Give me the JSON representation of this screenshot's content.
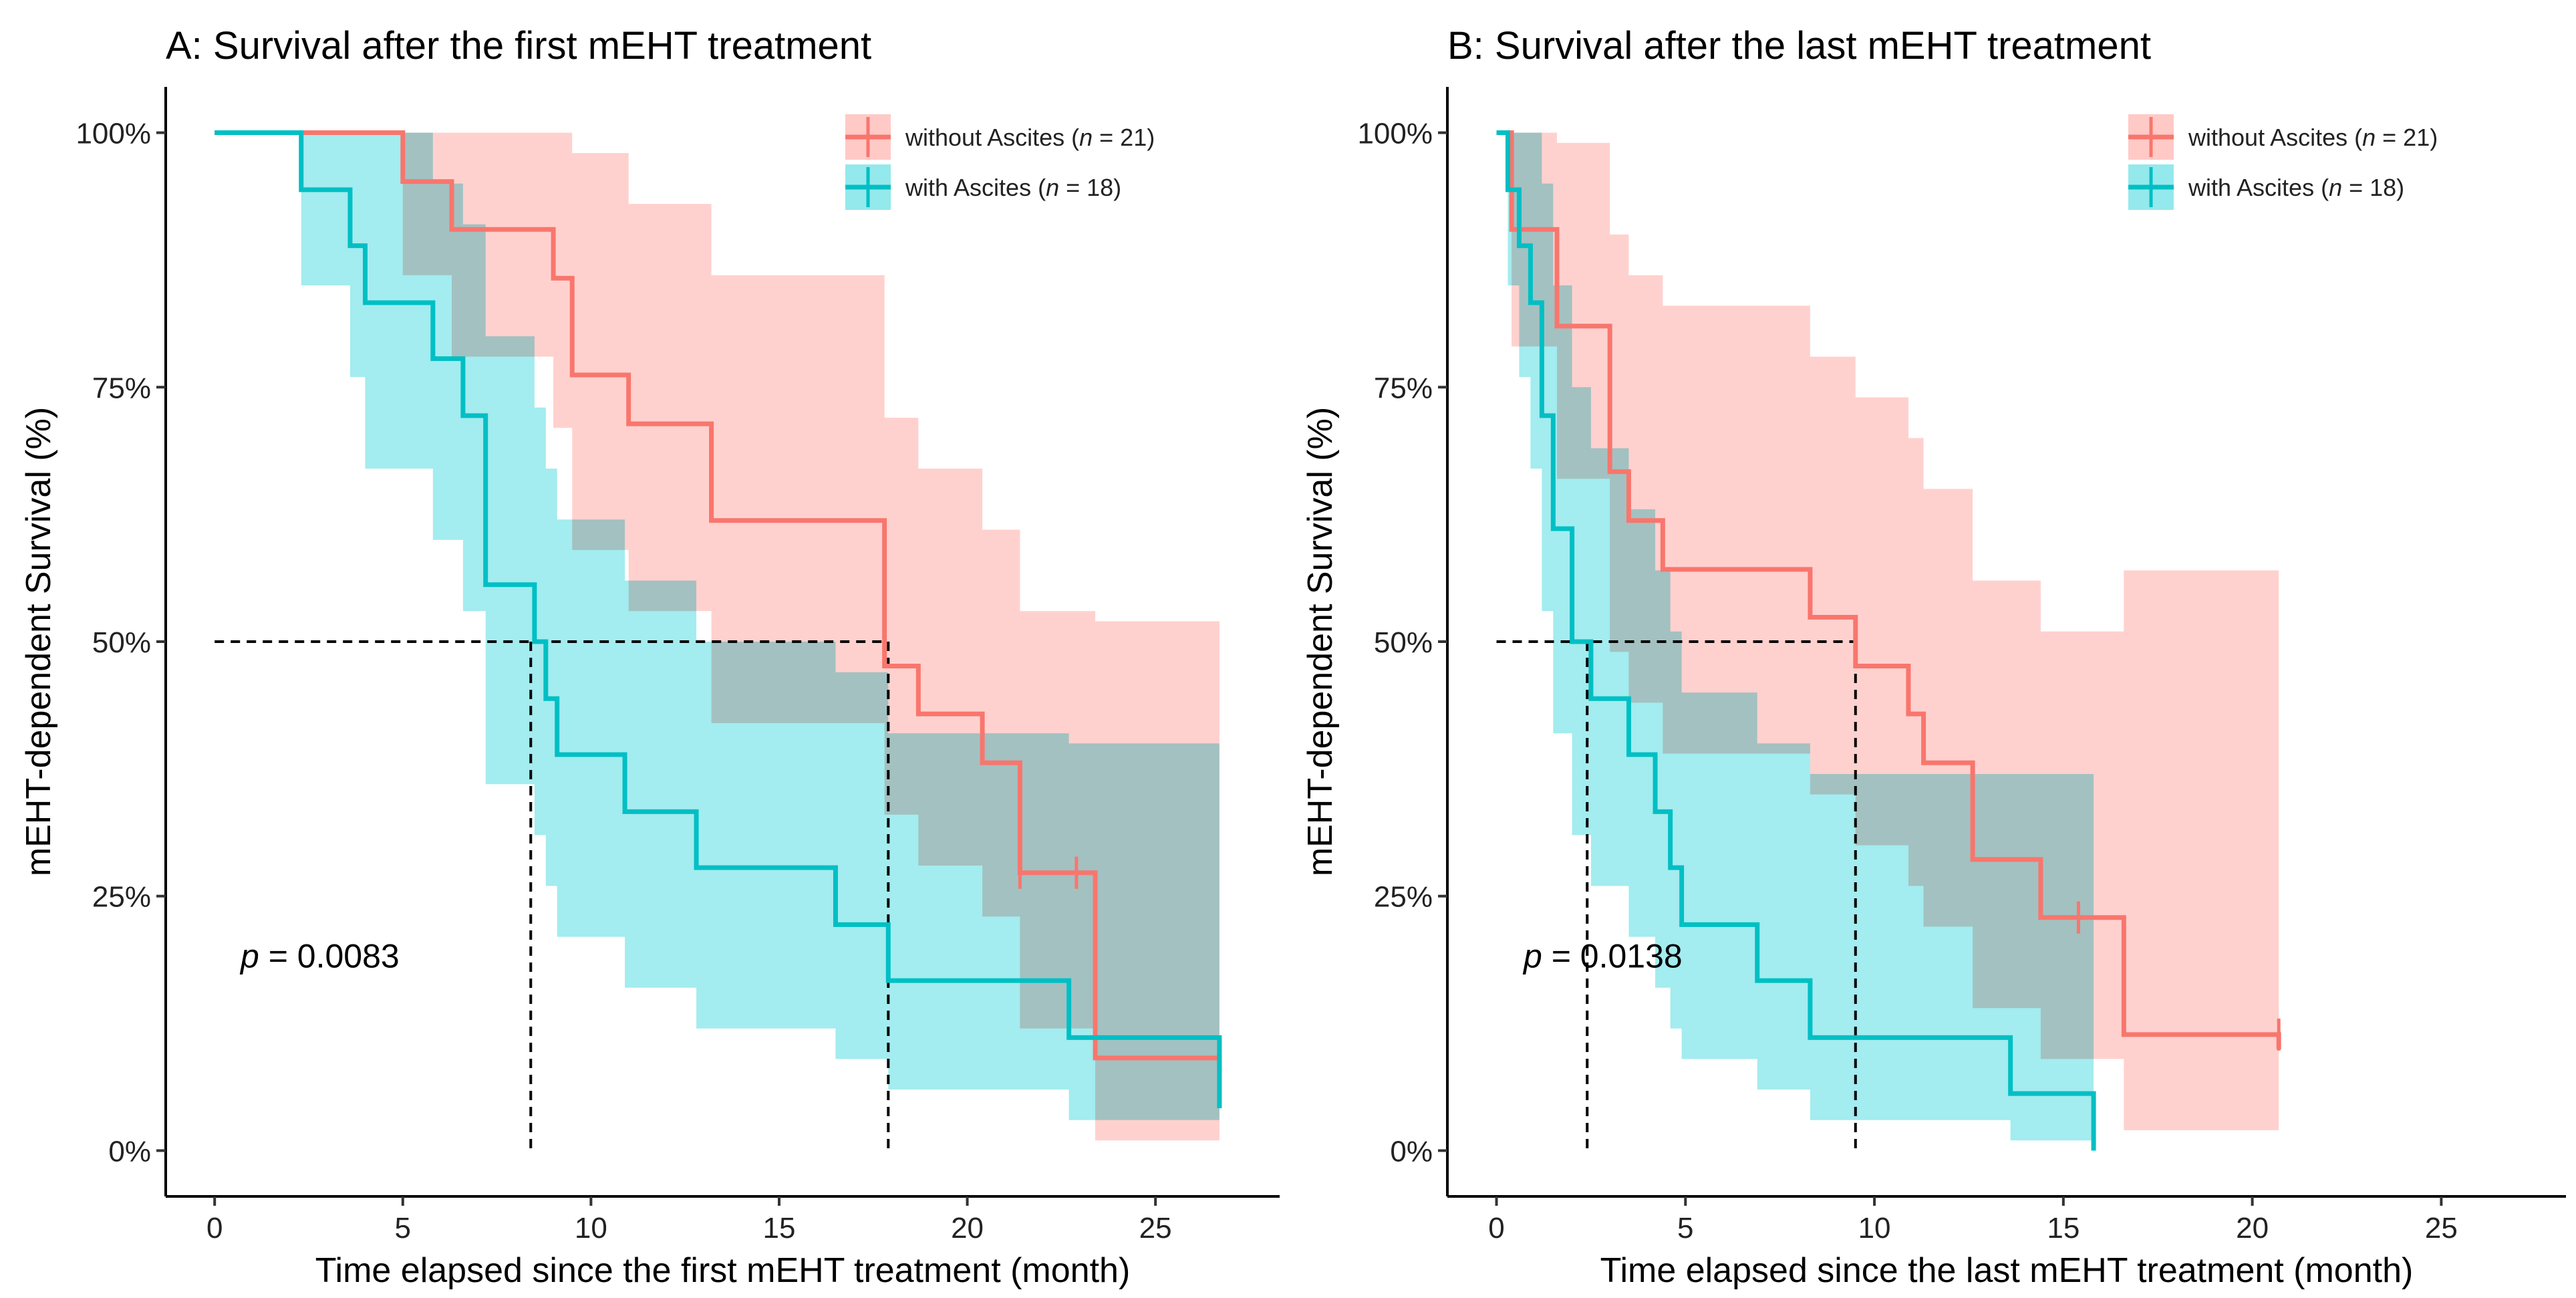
{
  "chart_data": [
    {
      "type": "line",
      "subtype": "kaplan-meier",
      "title": "A: Survival after the first mEHT treatment",
      "xlabel": "Time elapsed since the first mEHT treatment (month)",
      "ylabel": "mEHT-dependent Survival (%)",
      "xlim": [
        -1.3,
        28.3
      ],
      "ylim": [
        -0.045,
        1.045
      ],
      "xticks": [
        0,
        5,
        10,
        15,
        20,
        25
      ],
      "xtick_labels": [
        "0",
        "5",
        "10",
        "15",
        "20",
        "25"
      ],
      "yticks": [
        0,
        0.25,
        0.5,
        0.75,
        1
      ],
      "ytick_labels": [
        "0%",
        "25%",
        "50%",
        "75%",
        "100%"
      ],
      "p_prefix": "p",
      "p_value": "= 0.0083",
      "median_line": {
        "level": 0.5,
        "medians": [
          8.4,
          17.9
        ]
      },
      "series": [
        {
          "name": "without Ascites",
          "legend_label": "without Ascites (",
          "n_label": "n",
          "n_text": " = 21)",
          "color": "#f8766d",
          "band_color": "#ffc9c6",
          "x": [
            0,
            5,
            6.3,
            9.0,
            9.5,
            11.0,
            13.2,
            17.8,
            18.7,
            20.4,
            21.4,
            23.4,
            26.7
          ],
          "y": [
            1.0,
            0.952,
            0.905,
            0.857,
            0.762,
            0.714,
            0.619,
            0.476,
            0.429,
            0.381,
            0.273,
            0.091,
            0.091
          ],
          "band_lower": [
            1.0,
            0.86,
            0.78,
            0.71,
            0.59,
            0.53,
            0.42,
            0.33,
            0.28,
            0.23,
            0.12,
            0.01,
            0.01
          ],
          "band_upper": [
            1.0,
            1.0,
            1.0,
            1.0,
            0.98,
            0.93,
            0.86,
            0.72,
            0.67,
            0.61,
            0.53,
            0.52,
            0.52
          ],
          "censor_x": [
            21.4,
            22.9,
            26.7
          ],
          "censor_y": [
            0.273,
            0.273,
            0.091
          ]
        },
        {
          "name": "with Ascites",
          "legend_label": "with Ascites (",
          "n_label": "n",
          "n_text": " = 18)",
          "color": "#00bfc4",
          "band_color": "#93e9ec",
          "x": [
            0,
            2.3,
            3.6,
            4.0,
            5.8,
            6.6,
            7.2,
            8.5,
            8.8,
            9.1,
            10.9,
            12.8,
            16.5,
            17.9,
            22.7,
            26.7
          ],
          "y": [
            1.0,
            0.944,
            0.889,
            0.833,
            0.778,
            0.722,
            0.556,
            0.5,
            0.444,
            0.389,
            0.333,
            0.278,
            0.222,
            0.167,
            0.111,
            0.056
          ],
          "band_lower": [
            1.0,
            0.85,
            0.76,
            0.67,
            0.6,
            0.53,
            0.36,
            0.31,
            0.26,
            0.21,
            0.16,
            0.12,
            0.09,
            0.06,
            0.03,
            0.01
          ],
          "band_upper": [
            1.0,
            1.0,
            1.0,
            1.0,
            0.95,
            0.91,
            0.8,
            0.73,
            0.67,
            0.62,
            0.56,
            0.5,
            0.47,
            0.41,
            0.4,
            0.37
          ],
          "censor_x": [],
          "censor_y": []
        }
      ]
    },
    {
      "type": "line",
      "subtype": "kaplan-meier",
      "title": "B: Survival after the last mEHT treatment",
      "xlabel": "Time elapsed since the last mEHT treatment (month)",
      "ylabel": "mEHT-dependent Survival (%)",
      "xlim": [
        -1.3,
        28.3
      ],
      "ylim": [
        -0.045,
        1.045
      ],
      "xticks": [
        0,
        5,
        10,
        15,
        20,
        25
      ],
      "xtick_labels": [
        "0",
        "5",
        "10",
        "15",
        "20",
        "25"
      ],
      "yticks": [
        0,
        0.25,
        0.5,
        0.75,
        1
      ],
      "ytick_labels": [
        "0%",
        "25%",
        "50%",
        "75%",
        "100%"
      ],
      "p_prefix": "p",
      "p_value": "= 0.0138",
      "median_line": {
        "level": 0.5,
        "medians": [
          2.4,
          9.5
        ]
      },
      "series": [
        {
          "name": "without Ascites",
          "legend_label": "without Ascites (",
          "n_label": "n",
          "n_text": " = 21)",
          "color": "#f8766d",
          "band_color": "#ffc9c6",
          "x": [
            0,
            0.4,
            1.6,
            3.0,
            3.5,
            4.4,
            8.3,
            9.5,
            10.9,
            11.3,
            12.6,
            14.4,
            16.6,
            20.7
          ],
          "y": [
            1.0,
            0.905,
            0.81,
            0.667,
            0.619,
            0.571,
            0.524,
            0.476,
            0.429,
            0.381,
            0.286,
            0.229,
            0.114,
            0.114
          ],
          "band_lower": [
            1.0,
            0.79,
            0.66,
            0.49,
            0.44,
            0.39,
            0.35,
            0.3,
            0.26,
            0.22,
            0.14,
            0.09,
            0.02,
            0.02
          ],
          "band_upper": [
            1.0,
            1.0,
            0.99,
            0.9,
            0.86,
            0.83,
            0.78,
            0.74,
            0.7,
            0.65,
            0.56,
            0.51,
            0.57,
            0.57
          ],
          "censor_x": [
            15.4,
            20.7
          ],
          "censor_y": [
            0.229,
            0.114
          ]
        },
        {
          "name": "with Ascites",
          "legend_label": "with Ascites (",
          "n_label": "n",
          "n_text": " = 18)",
          "color": "#00bfc4",
          "band_color": "#93e9ec",
          "x": [
            0,
            0.3,
            0.6,
            0.9,
            1.2,
            1.5,
            2.0,
            2.5,
            3.5,
            4.2,
            4.6,
            4.9,
            6.9,
            8.3,
            13.6,
            15.8
          ],
          "y": [
            1.0,
            0.944,
            0.889,
            0.833,
            0.722,
            0.611,
            0.5,
            0.444,
            0.389,
            0.333,
            0.278,
            0.222,
            0.167,
            0.111,
            0.056,
            0.0
          ],
          "band_lower": [
            1.0,
            0.85,
            0.76,
            0.67,
            0.53,
            0.41,
            0.31,
            0.26,
            0.21,
            0.16,
            0.12,
            0.09,
            0.06,
            0.03,
            0.01,
            0.0
          ],
          "band_upper": [
            1.0,
            1.0,
            1.0,
            1.0,
            0.95,
            0.85,
            0.75,
            0.69,
            0.63,
            0.57,
            0.51,
            0.45,
            0.4,
            0.37,
            0.37,
            0.37
          ],
          "censor_x": [],
          "censor_y": []
        }
      ]
    }
  ]
}
